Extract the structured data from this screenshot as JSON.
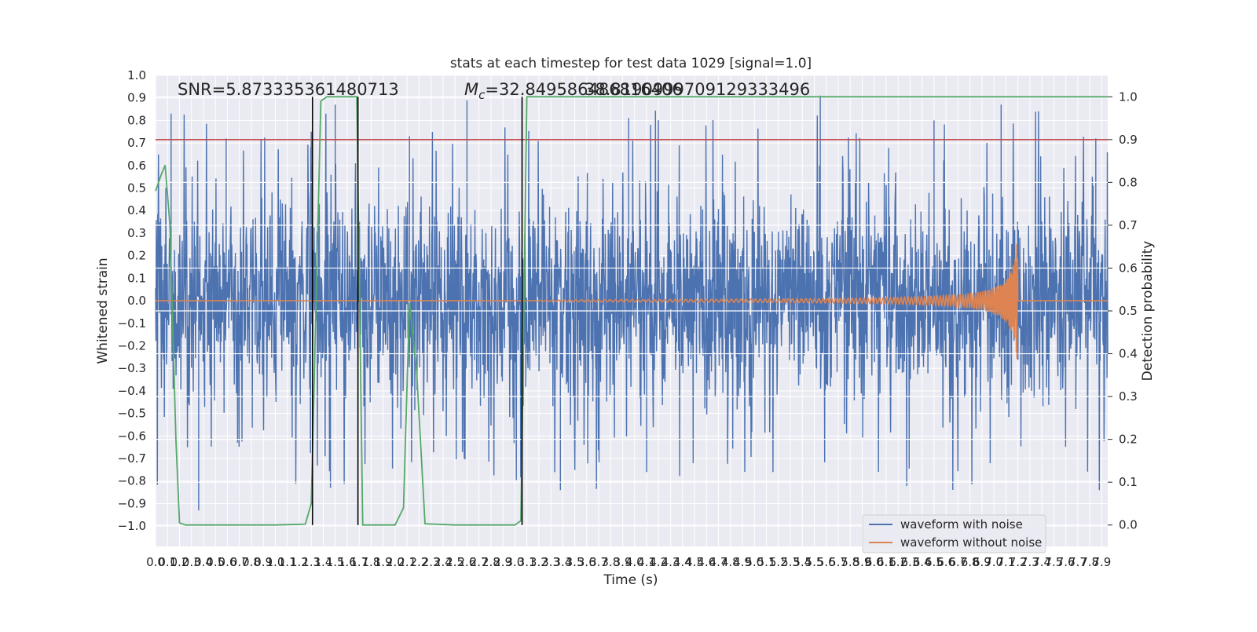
{
  "chart_data": {
    "type": "line",
    "title": "stats at each timestep for test data 1029 [signal=1.0]",
    "xlabel": "Time (s)",
    "ylabel": "Whitened strain",
    "y2label": "Detection probability",
    "xlim": [
      0.0,
      7.95
    ],
    "ylim": [
      -1.09,
      1.0
    ],
    "y2lim": [
      -0.05,
      1.05
    ],
    "x_ticks": [
      0.0,
      0.1,
      0.2,
      0.3,
      0.4,
      0.5,
      0.6,
      0.7,
      0.8,
      0.9,
      1.0,
      1.1,
      1.2,
      1.3,
      1.4,
      1.5,
      1.6,
      1.7,
      1.8,
      1.9,
      2.0,
      2.1,
      2.2,
      2.3,
      2.4,
      2.5,
      2.6,
      2.7,
      2.8,
      2.9,
      3.0,
      3.1,
      3.2,
      3.3,
      3.4,
      3.5,
      3.6,
      3.7,
      3.8,
      3.9,
      4.0,
      4.1,
      4.2,
      4.3,
      4.4,
      4.5,
      4.6,
      4.7,
      4.8,
      4.9,
      5.0,
      5.1,
      5.2,
      5.3,
      5.4,
      5.5,
      5.6,
      5.7,
      5.8,
      5.9,
      6.0,
      6.1,
      6.2,
      6.3,
      6.4,
      6.5,
      6.6,
      6.7,
      6.8,
      6.9,
      7.0,
      7.1,
      7.2,
      7.3,
      7.4,
      7.5,
      7.6,
      7.7,
      7.8,
      7.9
    ],
    "y_ticks": [
      -1.0,
      -0.9,
      -0.8,
      -0.7,
      -0.6,
      -0.5,
      -0.4,
      -0.3,
      -0.2,
      -0.1,
      0.0,
      0.1,
      0.2,
      0.3,
      0.4,
      0.5,
      0.6,
      0.7,
      0.8,
      0.9,
      1.0
    ],
    "y2_ticks": [
      0.0,
      0.1,
      0.2,
      0.3,
      0.4,
      0.5,
      0.6,
      0.7,
      0.8,
      0.9,
      1.0
    ],
    "grid": true,
    "legend_position": "bottom-right",
    "annotations": {
      "snr": "SNR=5.873335361480713",
      "mc": "M_c=32.849586486816406",
      "mc_overlap": "38.8190999709129333496"
    },
    "series": [
      {
        "name": "waveform with noise",
        "color": "#4c72b0",
        "axis": "left",
        "description": "dense whitened strain noise, amplitude roughly within [-1.0, 0.9]",
        "peak_samples": [
          {
            "x": 0.13,
            "y": 0.83
          },
          {
            "x": 0.36,
            "y": -0.93
          },
          {
            "x": 0.59,
            "y": 0.72
          },
          {
            "x": 1.3,
            "y": 0.75
          },
          {
            "x": 1.5,
            "y": 0.87
          },
          {
            "x": 1.46,
            "y": -0.83
          },
          {
            "x": 2.12,
            "y": 0.73
          },
          {
            "x": 2.6,
            "y": 0.89
          },
          {
            "x": 3.38,
            "y": -0.84
          },
          {
            "x": 3.95,
            "y": 0.81
          },
          {
            "x": 4.1,
            "y": -0.76
          },
          {
            "x": 5.55,
            "y": 0.91
          },
          {
            "x": 6.5,
            "y": 0.8
          },
          {
            "x": 7.06,
            "y": 0.87
          },
          {
            "x": 7.85,
            "y": 0.72
          }
        ]
      },
      {
        "name": "waveform without noise",
        "color": "#dd8452",
        "axis": "left",
        "description": "chirp signal, near zero until ~3.0 s, amplitude grows to ~0.32 at merger ~7.2 s then flat",
        "chirp": {
          "start": 3.0,
          "merger": 7.2,
          "peak_amplitude": 0.32
        }
      },
      {
        "name": "",
        "color": "#55a868",
        "axis": "right",
        "points": [
          {
            "x": 0.0,
            "y": 0.78
          },
          {
            "x": 0.05,
            "y": 0.82
          },
          {
            "x": 0.08,
            "y": 0.84
          },
          {
            "x": 0.12,
            "y": 0.7
          },
          {
            "x": 0.17,
            "y": 0.2
          },
          {
            "x": 0.2,
            "y": 0.005
          },
          {
            "x": 0.25,
            "y": 0.0
          },
          {
            "x": 0.7,
            "y": 0.0
          },
          {
            "x": 1.0,
            "y": 0.0
          },
          {
            "x": 1.25,
            "y": 0.002
          },
          {
            "x": 1.3,
            "y": 0.05
          },
          {
            "x": 1.38,
            "y": 0.99
          },
          {
            "x": 1.43,
            "y": 1.0
          },
          {
            "x": 1.68,
            "y": 1.0
          },
          {
            "x": 1.73,
            "y": 0.0
          },
          {
            "x": 1.78,
            "y": 0.0
          },
          {
            "x": 2.0,
            "y": 0.0
          },
          {
            "x": 2.07,
            "y": 0.04
          },
          {
            "x": 2.12,
            "y": 0.52
          },
          {
            "x": 2.18,
            "y": 0.36
          },
          {
            "x": 2.25,
            "y": 0.003
          },
          {
            "x": 2.5,
            "y": 0.0
          },
          {
            "x": 3.0,
            "y": 0.0
          },
          {
            "x": 3.05,
            "y": 0.01
          },
          {
            "x": 3.1,
            "y": 1.0
          },
          {
            "x": 7.95,
            "y": 1.0
          }
        ]
      },
      {
        "name": "",
        "color": "#c44e52",
        "axis": "right",
        "type": "hline",
        "y": 0.9
      }
    ],
    "vlines": {
      "color": "#000000",
      "x": [
        1.31,
        1.69,
        3.06
      ],
      "y2_range": [
        0.0,
        1.0
      ]
    }
  }
}
